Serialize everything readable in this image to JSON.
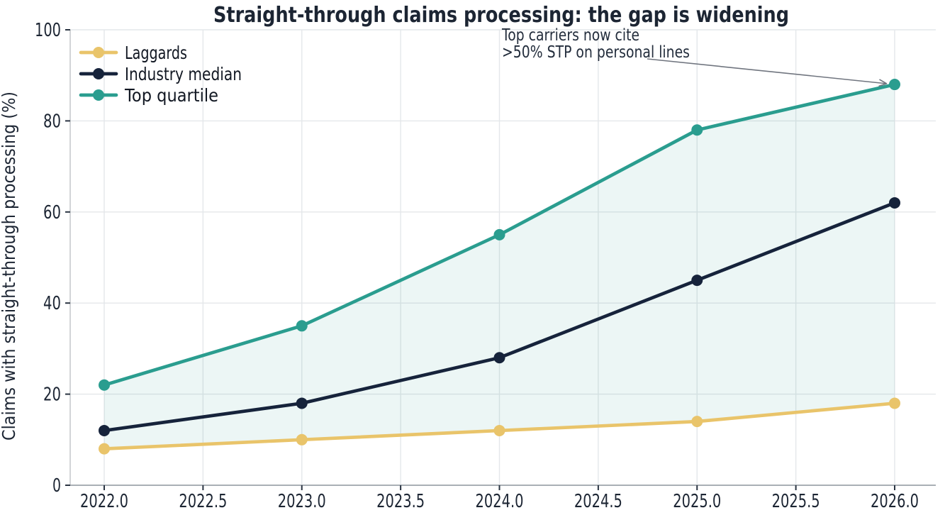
{
  "chart_data": {
    "type": "line",
    "title": "Straight-through claims processing: the gap is widening",
    "xlabel": "",
    "ylabel": "Claims with straight-through processing (%)",
    "x": [
      2022,
      2023,
      2024,
      2025,
      2026
    ],
    "series": [
      {
        "name": "Laggards",
        "color": "#e9c46a",
        "values": [
          8,
          10,
          12,
          14,
          18
        ]
      },
      {
        "name": "Industry median",
        "color": "#16233b",
        "values": [
          12,
          18,
          28,
          45,
          62
        ]
      },
      {
        "name": "Top quartile",
        "color": "#2a9d8f",
        "values": [
          22,
          35,
          55,
          78,
          88
        ]
      }
    ],
    "fill_between": {
      "lower_series": 0,
      "upper_series": 2,
      "color": "rgba(42,157,143,0.09)"
    },
    "ylim": [
      0,
      100
    ],
    "yticks": [
      0,
      20,
      40,
      60,
      80,
      100
    ],
    "ytick_labels": [
      "0",
      "20",
      "40",
      "60",
      "80",
      "100"
    ],
    "xticks": [
      2022,
      2022.5,
      2023,
      2023.5,
      2024,
      2024.5,
      2025,
      2025.5,
      2026
    ],
    "xtick_labels": [
      "2022.0",
      "2022.5",
      "2023.0",
      "2023.5",
      "2024.0",
      "2024.5",
      "2025.0",
      "2025.5",
      "2026.0"
    ],
    "grid": true,
    "legend_position": "upper left",
    "annotation": {
      "line1": "Top carriers now cite",
      "line2": ">50% STP on personal lines",
      "arrow_to_x": 2026,
      "arrow_to_y": 88
    },
    "colors": {
      "text": "#1c2533",
      "grid": "#e4e7ea",
      "spine_left": "#c6cacd",
      "spine_bottom": "#a9afb5",
      "tick": "#2a3442",
      "arrow": "#70757f"
    }
  }
}
